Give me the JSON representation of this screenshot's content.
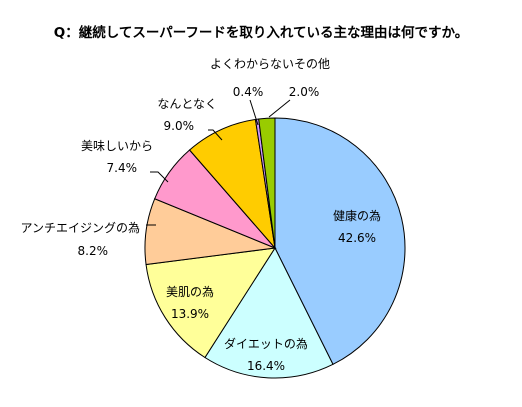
{
  "chart_data": {
    "type": "pie",
    "title": "Q：継続してスーパーフードを取り入れている主な理由は何ですか。",
    "slices": [
      {
        "label": "健康の為",
        "value": 42.6,
        "value_label": "42.6%",
        "color": "#99ccff"
      },
      {
        "label": "ダイエットの為",
        "value": 16.4,
        "value_label": "16.4%",
        "color": "#ccffff"
      },
      {
        "label": "美肌の為",
        "value": 13.9,
        "value_label": "13.9%",
        "color": "#ffff99"
      },
      {
        "label": "アンチエイジングの為",
        "value": 8.2,
        "value_label": "8.2%",
        "color": "#ffcc99"
      },
      {
        "label": "美味しいから",
        "value": 7.4,
        "value_label": "7.4%",
        "color": "#ff99cc"
      },
      {
        "label": "なんとなく",
        "value": 9.0,
        "value_label": "9.0%",
        "color": "#ffcc00"
      },
      {
        "label": "よくわからない",
        "value": 0.4,
        "value_label": "0.4%",
        "color": "#cc99ff"
      },
      {
        "label": "その他",
        "value": 2.0,
        "value_label": "2.0%",
        "color": "#99cc00"
      }
    ],
    "start": "12 o'clock",
    "direction": "clockwise",
    "legend": "none"
  }
}
